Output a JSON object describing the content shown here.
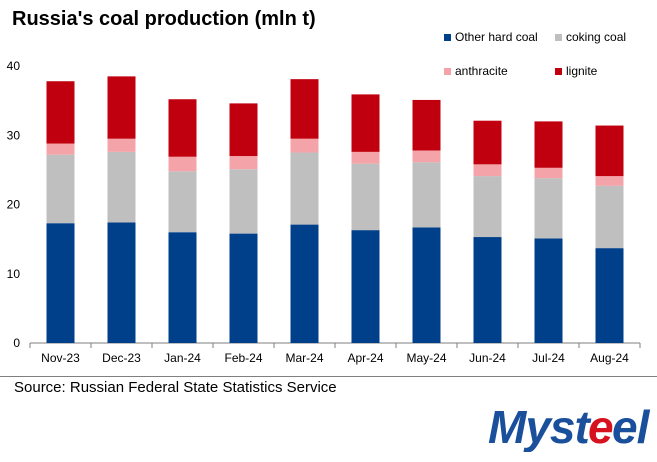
{
  "title": "Russia's coal production (mln t)",
  "source": "Source: Russian Federal State Statistics Service",
  "logo_text": "Mysteel",
  "colors": {
    "other_hard_coal": "#003f8a",
    "coking_coal": "#bfbfbf",
    "anthracite": "#f4a3a8",
    "lignite": "#c0000e",
    "logo_blue": "#1a4f9c",
    "logo_red": "#d7121f"
  },
  "chart_data": {
    "type": "bar",
    "stacked": true,
    "title": "Russia's coal production (mln t)",
    "categories": [
      "Nov-23",
      "Dec-23",
      "Jan-24",
      "Feb-24",
      "Mar-24",
      "Apr-24",
      "May-24",
      "Jun-24",
      "Jul-24",
      "Aug-24"
    ],
    "series": [
      {
        "name": "Other hard coal",
        "key": "other_hard_coal",
        "values": [
          17.3,
          17.4,
          16.0,
          15.8,
          17.1,
          16.3,
          16.7,
          15.3,
          15.1,
          13.7
        ]
      },
      {
        "name": "coking coal",
        "key": "coking_coal",
        "values": [
          9.9,
          10.2,
          8.8,
          9.3,
          10.4,
          9.6,
          9.4,
          8.8,
          8.7,
          9.0
        ]
      },
      {
        "name": "anthracite",
        "key": "anthracite",
        "values": [
          1.6,
          1.9,
          2.1,
          1.9,
          2.0,
          1.7,
          1.7,
          1.7,
          1.5,
          1.4
        ]
      },
      {
        "name": "lignite",
        "key": "lignite",
        "values": [
          9.0,
          9.0,
          8.3,
          7.6,
          8.6,
          8.3,
          7.3,
          6.3,
          6.7,
          7.3
        ]
      }
    ],
    "ylim": [
      0,
      40
    ],
    "yticks": [
      0,
      10,
      20,
      30,
      40
    ],
    "grid": false,
    "legend_position": "top-right"
  }
}
